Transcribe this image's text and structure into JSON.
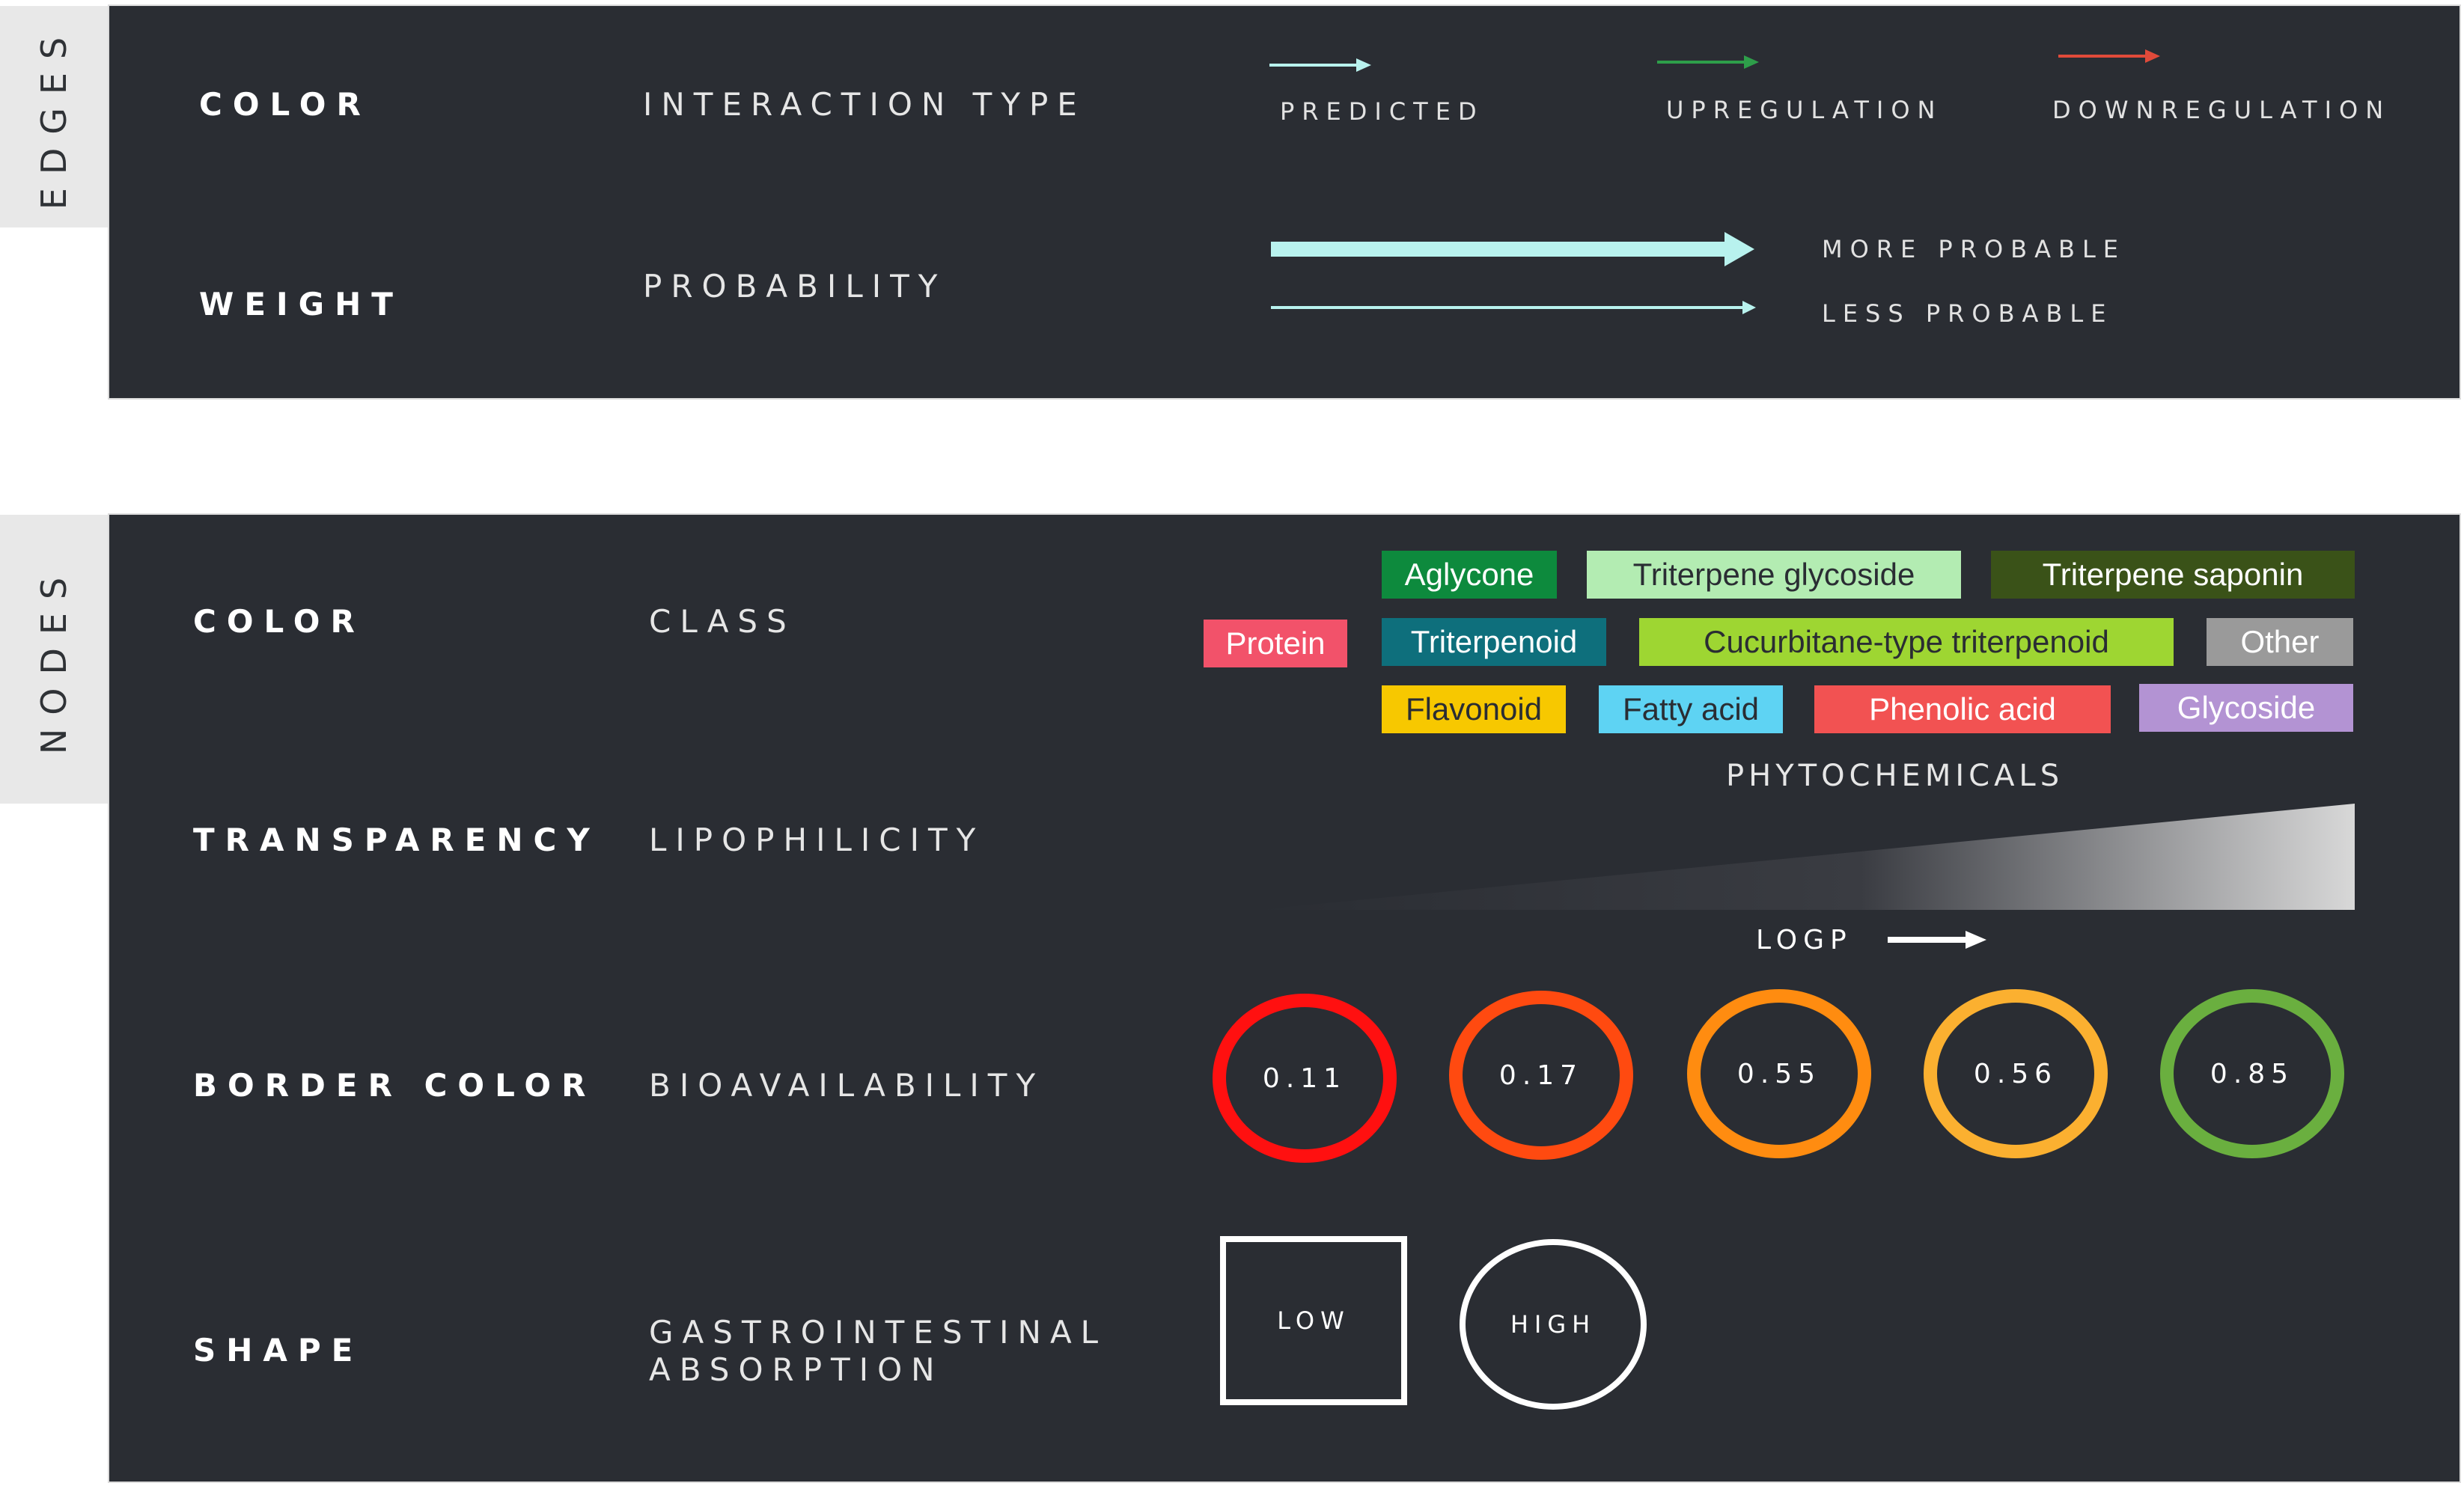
{
  "edges": {
    "tab_label": "EDGES",
    "color_row": {
      "property": "COLOR",
      "mapping": "INTERACTION TYPE",
      "items": [
        {
          "label": "PREDICTED",
          "color": "#b8f2ee"
        },
        {
          "label": "UPREGULATION",
          "color": "#2e9e4a"
        },
        {
          "label": "DOWNREGULATION",
          "color": "#e04a3a"
        }
      ]
    },
    "weight_row": {
      "property": "WEIGHT",
      "mapping": "PROBABILITY",
      "more_label": "MORE PROBABLE",
      "less_label": "LESS PROBABLE",
      "arrow_color": "#b8f2ee"
    }
  },
  "nodes": {
    "tab_label": "NODES",
    "color_row": {
      "property": "COLOR",
      "mapping": "CLASS",
      "classes": [
        {
          "label": "Aglycone",
          "bg": "#0d8a3d",
          "fg": "#ffffff"
        },
        {
          "label": "Triterpene glycoside",
          "bg": "#b3ecb2",
          "fg": "#2a2d33"
        },
        {
          "label": "Triterpene saponin",
          "bg": "#3a5218",
          "fg": "#ffffff"
        },
        {
          "label": "Protein",
          "bg": "#f2526a",
          "fg": "#ffffff"
        },
        {
          "label": "Triterpenoid",
          "bg": "#0e6f7c",
          "fg": "#ffffff"
        },
        {
          "label": "Cucurbitane-type triterpenoid",
          "bg": "#9ed632",
          "fg": "#2a2d33"
        },
        {
          "label": "Other",
          "bg": "#9a9a9a",
          "fg": "#ffffff"
        },
        {
          "label": "Flavonoid",
          "bg": "#f7c800",
          "fg": "#2a2d33"
        },
        {
          "label": "Fatty acid",
          "bg": "#5ed3f3",
          "fg": "#2a2d33"
        },
        {
          "label": "Phenolic acid",
          "bg": "#f25252",
          "fg": "#ffffff"
        },
        {
          "label": "Glycoside",
          "bg": "#b393d3",
          "fg": "#ffffff"
        }
      ],
      "group_caption": "PHYTOCHEMICALS"
    },
    "transparency_row": {
      "property": "TRANSPARENCY",
      "mapping": "LIPOPHILICITY",
      "axis_label": "LOGP"
    },
    "border_row": {
      "property": "BORDER COLOR",
      "mapping": "BIOAVAILABILITY",
      "values": [
        {
          "label": "0.11",
          "color": "#ff1010"
        },
        {
          "label": "0.17",
          "color": "#ff4a10"
        },
        {
          "label": "0.55",
          "color": "#ff8c10"
        },
        {
          "label": "0.56",
          "color": "#fbb030"
        },
        {
          "label": "0.85",
          "color": "#6aaf3f"
        }
      ]
    },
    "shape_row": {
      "property": "SHAPE",
      "mapping_line1": "GASTROINTESTINAL",
      "mapping_line2": "ABSORPTION",
      "low_label": "LOW",
      "high_label": "HIGH"
    }
  }
}
